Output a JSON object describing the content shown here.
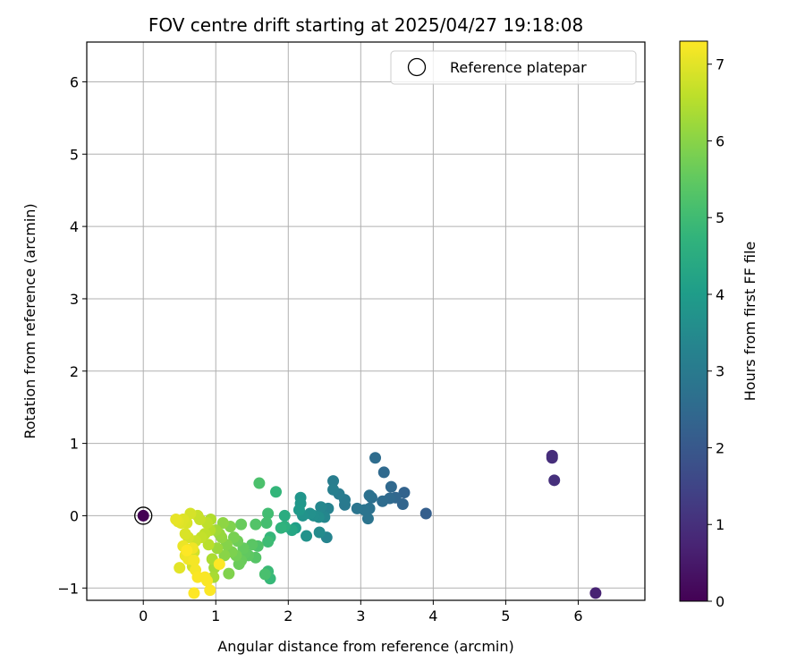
{
  "chart_data": {
    "type": "scatter",
    "title": "FOV centre drift starting at 2025/04/27 19:18:08",
    "xlabel": "Angular distance from reference (arcmin)",
    "ylabel": "Rotation from reference (arcmin)",
    "xlim": [
      -0.78,
      6.92
    ],
    "ylim": [
      -1.17,
      6.55
    ],
    "xticks": [
      0,
      1,
      2,
      3,
      4,
      5,
      6
    ],
    "yticks": [
      -1,
      0,
      1,
      2,
      3,
      4,
      5,
      6
    ],
    "grid": true,
    "legend": {
      "position": "top-right",
      "entries": [
        "Reference platepar"
      ]
    },
    "reference_point": {
      "x": 0,
      "y": 0
    },
    "colorbar": {
      "label": "Hours from first FF file",
      "min": 0,
      "max": 7.3,
      "ticks": [
        0,
        1,
        2,
        3,
        4,
        5,
        6,
        7
      ],
      "colormap": "viridis"
    },
    "points": [
      {
        "x": 0.0,
        "y": 0.0,
        "h": 0.0
      },
      {
        "x": 6.24,
        "y": -1.07,
        "h": 0.7
      },
      {
        "x": 5.64,
        "y": 0.83,
        "h": 0.9
      },
      {
        "x": 5.64,
        "y": 0.8,
        "h": 0.95
      },
      {
        "x": 5.67,
        "y": 0.49,
        "h": 1.0
      },
      {
        "x": 3.9,
        "y": 0.03,
        "h": 2.2
      },
      {
        "x": 3.6,
        "y": 0.32,
        "h": 2.3
      },
      {
        "x": 3.58,
        "y": 0.16,
        "h": 2.35
      },
      {
        "x": 3.48,
        "y": 0.25,
        "h": 2.4
      },
      {
        "x": 3.42,
        "y": 0.4,
        "h": 2.45
      },
      {
        "x": 3.4,
        "y": 0.24,
        "h": 2.5
      },
      {
        "x": 3.32,
        "y": 0.6,
        "h": 2.5
      },
      {
        "x": 3.3,
        "y": 0.2,
        "h": 2.55
      },
      {
        "x": 3.2,
        "y": 0.8,
        "h": 2.6
      },
      {
        "x": 3.15,
        "y": 0.25,
        "h": 2.65
      },
      {
        "x": 3.12,
        "y": 0.28,
        "h": 2.7
      },
      {
        "x": 3.12,
        "y": 0.1,
        "h": 2.75
      },
      {
        "x": 3.1,
        "y": -0.04,
        "h": 2.8
      },
      {
        "x": 3.05,
        "y": 0.08,
        "h": 2.8
      },
      {
        "x": 2.95,
        "y": 0.1,
        "h": 2.85
      },
      {
        "x": 2.78,
        "y": 0.15,
        "h": 2.95
      },
      {
        "x": 2.78,
        "y": 0.22,
        "h": 3.0
      },
      {
        "x": 2.7,
        "y": 0.3,
        "h": 3.05
      },
      {
        "x": 2.62,
        "y": 0.48,
        "h": 3.1
      },
      {
        "x": 2.62,
        "y": 0.36,
        "h": 3.15
      },
      {
        "x": 2.55,
        "y": 0.1,
        "h": 3.25
      },
      {
        "x": 2.53,
        "y": -0.3,
        "h": 3.3
      },
      {
        "x": 2.5,
        "y": -0.02,
        "h": 3.35
      },
      {
        "x": 2.45,
        "y": 0.12,
        "h": 3.4
      },
      {
        "x": 2.43,
        "y": -0.23,
        "h": 3.5
      },
      {
        "x": 2.42,
        "y": -0.02,
        "h": 3.55
      },
      {
        "x": 2.35,
        "y": 0.0,
        "h": 3.6
      },
      {
        "x": 2.3,
        "y": 0.03,
        "h": 3.65
      },
      {
        "x": 2.25,
        "y": -0.28,
        "h": 3.7
      },
      {
        "x": 2.2,
        "y": 0.0,
        "h": 3.75
      },
      {
        "x": 2.17,
        "y": 0.25,
        "h": 3.8
      },
      {
        "x": 2.17,
        "y": 0.17,
        "h": 3.85
      },
      {
        "x": 2.15,
        "y": 0.08,
        "h": 3.9
      },
      {
        "x": 2.1,
        "y": -0.17,
        "h": 4.1
      },
      {
        "x": 2.05,
        "y": -0.2,
        "h": 4.3
      },
      {
        "x": 1.95,
        "y": 0.0,
        "h": 4.5
      },
      {
        "x": 1.95,
        "y": -0.15,
        "h": 4.6
      },
      {
        "x": 1.9,
        "y": -0.17,
        "h": 4.7
      },
      {
        "x": 1.83,
        "y": 0.33,
        "h": 4.8
      },
      {
        "x": 1.75,
        "y": -0.3,
        "h": 4.85
      },
      {
        "x": 1.75,
        "y": -0.87,
        "h": 4.9
      },
      {
        "x": 1.72,
        "y": -0.77,
        "h": 4.95
      },
      {
        "x": 1.72,
        "y": -0.36,
        "h": 5.0
      },
      {
        "x": 1.72,
        "y": 0.03,
        "h": 5.05
      },
      {
        "x": 1.7,
        "y": -0.1,
        "h": 5.1
      },
      {
        "x": 1.68,
        "y": -0.81,
        "h": 5.15
      },
      {
        "x": 1.6,
        "y": 0.45,
        "h": 5.2
      },
      {
        "x": 1.58,
        "y": -0.42,
        "h": 5.25
      },
      {
        "x": 1.55,
        "y": -0.12,
        "h": 5.3
      },
      {
        "x": 1.55,
        "y": -0.58,
        "h": 5.35
      },
      {
        "x": 1.5,
        "y": -0.4,
        "h": 5.4
      },
      {
        "x": 1.45,
        "y": -0.55,
        "h": 5.45
      },
      {
        "x": 1.4,
        "y": -0.52,
        "h": 5.5
      },
      {
        "x": 1.38,
        "y": -0.45,
        "h": 5.55
      },
      {
        "x": 1.35,
        "y": -0.12,
        "h": 5.6
      },
      {
        "x": 1.35,
        "y": -0.62,
        "h": 5.6
      },
      {
        "x": 1.32,
        "y": -0.67,
        "h": 5.65
      },
      {
        "x": 1.3,
        "y": -0.35,
        "h": 5.7
      },
      {
        "x": 1.28,
        "y": -0.55,
        "h": 5.75
      },
      {
        "x": 1.25,
        "y": -0.3,
        "h": 5.8
      },
      {
        "x": 1.22,
        "y": -0.5,
        "h": 5.85
      },
      {
        "x": 1.2,
        "y": -0.15,
        "h": 5.9
      },
      {
        "x": 1.18,
        "y": -0.8,
        "h": 5.9
      },
      {
        "x": 1.15,
        "y": -0.4,
        "h": 5.95
      },
      {
        "x": 1.12,
        "y": -0.55,
        "h": 6.0
      },
      {
        "x": 1.1,
        "y": -0.1,
        "h": 6.05
      },
      {
        "x": 1.08,
        "y": -0.3,
        "h": 6.1
      },
      {
        "x": 1.05,
        "y": -0.25,
        "h": 6.15
      },
      {
        "x": 1.02,
        "y": -0.45,
        "h": 6.2
      },
      {
        "x": 1.0,
        "y": -0.2,
        "h": 6.25
      },
      {
        "x": 0.98,
        "y": -0.72,
        "h": 6.3
      },
      {
        "x": 0.97,
        "y": -0.85,
        "h": 6.35
      },
      {
        "x": 0.95,
        "y": -0.6,
        "h": 6.4
      },
      {
        "x": 0.93,
        "y": -0.05,
        "h": 6.45
      },
      {
        "x": 0.92,
        "y": -0.2,
        "h": 6.5
      },
      {
        "x": 0.9,
        "y": -0.4,
        "h": 6.55
      },
      {
        "x": 0.88,
        "y": -0.1,
        "h": 6.6
      },
      {
        "x": 0.85,
        "y": -0.25,
        "h": 6.6
      },
      {
        "x": 0.8,
        "y": -0.3,
        "h": 6.65
      },
      {
        "x": 0.78,
        "y": -0.05,
        "h": 6.7
      },
      {
        "x": 0.75,
        "y": 0.0,
        "h": 6.7
      },
      {
        "x": 0.72,
        "y": -0.35,
        "h": 6.75
      },
      {
        "x": 0.7,
        "y": -0.5,
        "h": 6.8
      },
      {
        "x": 0.68,
        "y": -0.7,
        "h": 6.8
      },
      {
        "x": 0.65,
        "y": 0.03,
        "h": 6.85
      },
      {
        "x": 0.62,
        "y": -0.3,
        "h": 6.85
      },
      {
        "x": 0.6,
        "y": -0.1,
        "h": 6.9
      },
      {
        "x": 0.58,
        "y": -0.25,
        "h": 6.9
      },
      {
        "x": 0.55,
        "y": -0.05,
        "h": 6.95
      },
      {
        "x": 0.52,
        "y": -0.1,
        "h": 6.95
      },
      {
        "x": 0.5,
        "y": -0.72,
        "h": 7.0
      },
      {
        "x": 0.48,
        "y": -0.08,
        "h": 7.0
      },
      {
        "x": 0.45,
        "y": -0.05,
        "h": 7.05
      },
      {
        "x": 0.55,
        "y": -0.42,
        "h": 7.1
      },
      {
        "x": 0.58,
        "y": -0.55,
        "h": 7.1
      },
      {
        "x": 0.62,
        "y": -0.6,
        "h": 7.15
      },
      {
        "x": 0.68,
        "y": -0.45,
        "h": 7.15
      },
      {
        "x": 0.7,
        "y": -0.62,
        "h": 7.2
      },
      {
        "x": 0.72,
        "y": -0.75,
        "h": 7.2
      },
      {
        "x": 0.75,
        "y": -0.85,
        "h": 7.25
      },
      {
        "x": 0.85,
        "y": -0.85,
        "h": 7.25
      },
      {
        "x": 0.88,
        "y": -0.9,
        "h": 7.25
      },
      {
        "x": 0.92,
        "y": -1.03,
        "h": 7.28
      },
      {
        "x": 0.7,
        "y": -1.07,
        "h": 7.3
      },
      {
        "x": 1.05,
        "y": -0.67,
        "h": 7.3
      },
      {
        "x": 0.6,
        "y": -0.48,
        "h": 7.3
      }
    ]
  }
}
